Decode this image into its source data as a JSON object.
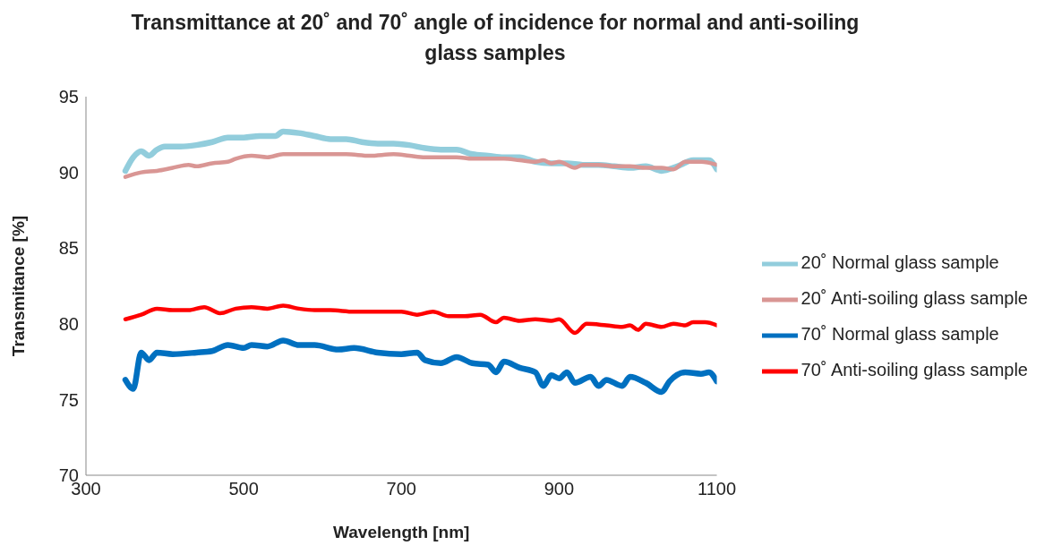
{
  "chart_data": {
    "type": "line",
    "title": "Transmittance at 20˚ and 70˚ angle of incidence for normal and anti-soiling glass samples",
    "xlabel": "Wavelength [nm]",
    "ylabel": "Transmitance [%]",
    "xlim": [
      300,
      1100
    ],
    "xticks": [
      300,
      500,
      700,
      900,
      1100
    ],
    "ylim": [
      70,
      95
    ],
    "yticks": [
      70,
      75,
      80,
      85,
      90,
      95
    ],
    "grid": false,
    "legend": "right",
    "marker": "none",
    "line_style": "solid",
    "series": [
      {
        "name": "20˚ Normal glass sample",
        "color": "#92cddc",
        "x": [
          350,
          360,
          370,
          380,
          390,
          400,
          420,
          440,
          460,
          480,
          500,
          520,
          540,
          550,
          570,
          590,
          610,
          630,
          650,
          670,
          690,
          710,
          730,
          750,
          770,
          790,
          810,
          830,
          850,
          870,
          890,
          910,
          930,
          950,
          970,
          990,
          1010,
          1030,
          1050,
          1070,
          1090,
          1100
        ],
        "values": [
          90.1,
          91.0,
          91.4,
          91.1,
          91.5,
          91.7,
          91.7,
          91.8,
          92.0,
          92.3,
          92.3,
          92.4,
          92.4,
          92.7,
          92.6,
          92.4,
          92.2,
          92.2,
          92.0,
          91.9,
          91.9,
          91.8,
          91.6,
          91.5,
          91.5,
          91.2,
          91.1,
          91.0,
          91.0,
          90.7,
          90.6,
          90.6,
          90.5,
          90.5,
          90.4,
          90.3,
          90.4,
          90.1,
          90.4,
          90.8,
          90.8,
          90.2
        ]
      },
      {
        "name": "20˚ Anti-soiling glass sample",
        "color": "#d99694",
        "x": [
          350,
          370,
          390,
          410,
          430,
          440,
          460,
          480,
          490,
          510,
          530,
          550,
          570,
          600,
          630,
          660,
          690,
          710,
          730,
          750,
          770,
          790,
          810,
          830,
          850,
          870,
          880,
          890,
          900,
          920,
          930,
          950,
          970,
          990,
          1010,
          1030,
          1045,
          1060,
          1080,
          1100
        ],
        "values": [
          89.7,
          90.0,
          90.1,
          90.3,
          90.5,
          90.4,
          90.6,
          90.7,
          90.9,
          91.1,
          91.0,
          91.2,
          91.2,
          91.2,
          91.2,
          91.1,
          91.2,
          91.1,
          91.0,
          91.0,
          91.0,
          90.9,
          90.9,
          90.9,
          90.8,
          90.7,
          90.8,
          90.6,
          90.7,
          90.3,
          90.5,
          90.5,
          90.4,
          90.4,
          90.3,
          90.3,
          90.2,
          90.7,
          90.7,
          90.5
        ]
      },
      {
        "name": "70˚ Normal glass sample",
        "color": "#0070c0",
        "x": [
          350,
          360,
          370,
          380,
          390,
          410,
          440,
          460,
          480,
          500,
          510,
          530,
          550,
          570,
          590,
          620,
          640,
          670,
          700,
          720,
          730,
          750,
          770,
          790,
          810,
          820,
          830,
          850,
          870,
          880,
          890,
          900,
          910,
          920,
          940,
          950,
          960,
          980,
          990,
          1010,
          1030,
          1040,
          1060,
          1080,
          1090,
          1100
        ],
        "values": [
          76.3,
          75.7,
          78.1,
          77.6,
          78.1,
          78.0,
          78.1,
          78.2,
          78.6,
          78.4,
          78.6,
          78.5,
          78.9,
          78.6,
          78.6,
          78.3,
          78.4,
          78.1,
          78.0,
          78.1,
          77.6,
          77.4,
          77.8,
          77.4,
          77.3,
          76.8,
          77.5,
          77.1,
          76.8,
          75.9,
          76.6,
          76.4,
          76.8,
          76.1,
          76.5,
          75.9,
          76.3,
          75.9,
          76.5,
          76.1,
          75.5,
          76.2,
          76.8,
          76.7,
          76.8,
          76.2
        ]
      },
      {
        "name": "70˚ Anti-soiling glass sample",
        "color": "#ff0000",
        "x": [
          350,
          370,
          390,
          410,
          430,
          450,
          470,
          490,
          510,
          530,
          550,
          570,
          590,
          610,
          640,
          670,
          700,
          720,
          740,
          760,
          780,
          800,
          820,
          830,
          850,
          870,
          890,
          900,
          920,
          935,
          960,
          980,
          990,
          1000,
          1010,
          1030,
          1045,
          1060,
          1070,
          1085,
          1100
        ],
        "values": [
          80.3,
          80.6,
          81.0,
          80.9,
          80.9,
          81.1,
          80.7,
          81.0,
          81.1,
          81.0,
          81.2,
          81.0,
          80.9,
          80.9,
          80.8,
          80.8,
          80.8,
          80.6,
          80.8,
          80.5,
          80.5,
          80.6,
          80.1,
          80.4,
          80.2,
          80.3,
          80.2,
          80.3,
          79.4,
          80.0,
          79.9,
          79.8,
          79.9,
          79.6,
          80.0,
          79.8,
          80.0,
          79.9,
          80.1,
          80.1,
          79.9
        ]
      }
    ]
  }
}
